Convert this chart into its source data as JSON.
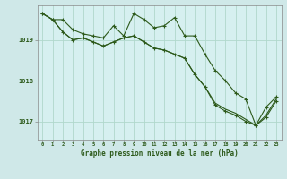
{
  "background_color": "#cfe8e8",
  "plot_bg_color": "#d6f0f0",
  "grid_color": "#b0d8cc",
  "line_color": "#2d5a1b",
  "marker_color": "#2d5a1b",
  "title": "Graphe pression niveau de la mer (hPa)",
  "yticks": [
    1017,
    1018,
    1019
  ],
  "ylim": [
    1016.55,
    1019.85
  ],
  "xlim": [
    -0.5,
    23.5
  ],
  "series": [
    [
      1019.65,
      1019.5,
      1019.5,
      1019.25,
      1019.15,
      1019.1,
      1019.05,
      1019.35,
      1019.1,
      1019.65,
      1019.5,
      1019.3,
      1019.35,
      1019.55,
      1019.1,
      1019.1,
      1018.65,
      1018.25,
      1018.0,
      1017.7,
      1017.55,
      1016.9,
      1017.35,
      1017.6
    ],
    [
      1019.65,
      1019.5,
      1019.2,
      1019.0,
      1019.05,
      1018.95,
      1018.85,
      1018.95,
      1019.05,
      1019.1,
      1018.95,
      1018.8,
      1018.75,
      1018.65,
      1018.55,
      1018.15,
      1017.85,
      1017.45,
      1017.3,
      1017.2,
      1017.05,
      1016.9,
      1017.15,
      1017.55
    ],
    [
      1019.65,
      1019.5,
      1019.2,
      1019.0,
      1019.05,
      1018.95,
      1018.85,
      1018.95,
      1019.05,
      1019.1,
      1018.95,
      1018.8,
      1018.75,
      1018.65,
      1018.55,
      1018.15,
      1017.85,
      1017.4,
      1017.25,
      1017.15,
      1017.0,
      1016.9,
      1017.1,
      1017.5
    ]
  ],
  "series_markers": [
    true,
    false,
    true
  ],
  "series_linewidths": [
    0.8,
    0.8,
    0.8
  ]
}
